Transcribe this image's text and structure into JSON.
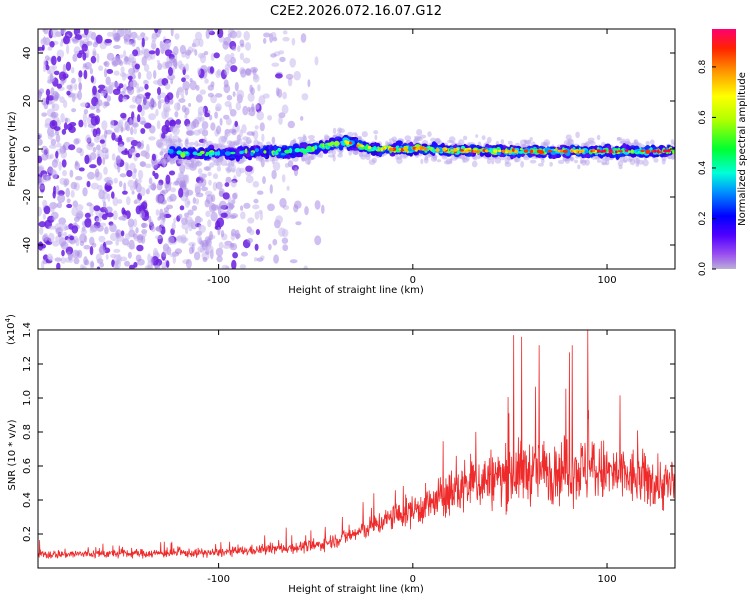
{
  "title": "C2E2.2026.072.16.07.G12",
  "chart_data": [
    {
      "type": "heatmap",
      "description_label": "spectrogram",
      "xlabel": "Height of straight line (km)",
      "ylabel": "Frequency (Hz)",
      "xlim": [
        -193,
        135
      ],
      "ylim": [
        -50,
        50
      ],
      "xticks": [
        -100,
        0,
        100
      ],
      "xtick_labels": [
        "-100",
        "0",
        "100"
      ],
      "yticks": [
        -40,
        -20,
        0,
        20,
        40
      ],
      "ytick_labels": [
        "-40",
        "-20",
        "0",
        "20",
        "40"
      ],
      "colorbar": {
        "label": "Normalized spectral amplitude",
        "range": [
          0,
          0.95
        ],
        "ticks": [
          0.0,
          0.2,
          0.4,
          0.6,
          0.8
        ],
        "tick_labels": [
          "0.0",
          "0.2",
          "0.4",
          "0.6",
          "0.8"
        ],
        "colors": [
          "#b9b0d6",
          "#8000ff",
          "#0000ff",
          "#00b0ff",
          "#00ffd0",
          "#30ff30",
          "#c0ff00",
          "#ffff00",
          "#ff9900",
          "#ff2200",
          "#ff0066"
        ]
      },
      "band_center_hz": [
        {
          "x": -120,
          "y": -2
        },
        {
          "x": -60,
          "y": -1
        },
        {
          "x": -35,
          "y": 3
        },
        {
          "x": -20,
          "y": 0
        },
        {
          "x": 0,
          "y": 0
        },
        {
          "x": 50,
          "y": -1
        },
        {
          "x": 100,
          "y": -1
        },
        {
          "x": 135,
          "y": -1
        }
      ]
    },
    {
      "type": "line",
      "xlabel": "Height of straight line (km)",
      "ylabel": "SNR (10 * v/v)",
      "y_multiplier": "(x10",
      "y_multiplier_exponent": "4",
      "y_multiplier_close": ")",
      "xlim": [
        -193,
        135
      ],
      "ylim": [
        0,
        14000
      ],
      "xticks": [
        -100,
        0,
        100
      ],
      "xtick_labels": [
        "-100",
        "0",
        "100"
      ],
      "yticks": [
        2000,
        4000,
        6000,
        8000,
        10000,
        12000,
        14000
      ],
      "ytick_labels": [
        "0.2",
        "0.4",
        "0.6",
        "0.8",
        "1.0",
        "1.2",
        "1.4"
      ],
      "color": "#ee2a2a",
      "envelope": [
        {
          "x": -193,
          "mean": 800,
          "spread": 500
        },
        {
          "x": -100,
          "mean": 900,
          "spread": 500
        },
        {
          "x": -50,
          "mean": 1300,
          "spread": 700
        },
        {
          "x": -30,
          "mean": 2000,
          "spread": 1000
        },
        {
          "x": -10,
          "mean": 3000,
          "spread": 1500
        },
        {
          "x": 10,
          "mean": 3800,
          "spread": 2200
        },
        {
          "x": 30,
          "mean": 5000,
          "spread": 3200
        },
        {
          "x": 60,
          "mean": 5700,
          "spread": 3600
        },
        {
          "x": 90,
          "mean": 5800,
          "spread": 3800
        },
        {
          "x": 110,
          "mean": 5400,
          "spread": 3300
        },
        {
          "x": 135,
          "mean": 4800,
          "spread": 3000
        }
      ],
      "peaks": [
        {
          "x": 52,
          "y": 13700
        },
        {
          "x": 56,
          "y": 13600
        },
        {
          "x": 90,
          "y": 14000
        },
        {
          "x": 65,
          "y": 13100
        },
        {
          "x": 82,
          "y": 13100
        }
      ]
    }
  ]
}
